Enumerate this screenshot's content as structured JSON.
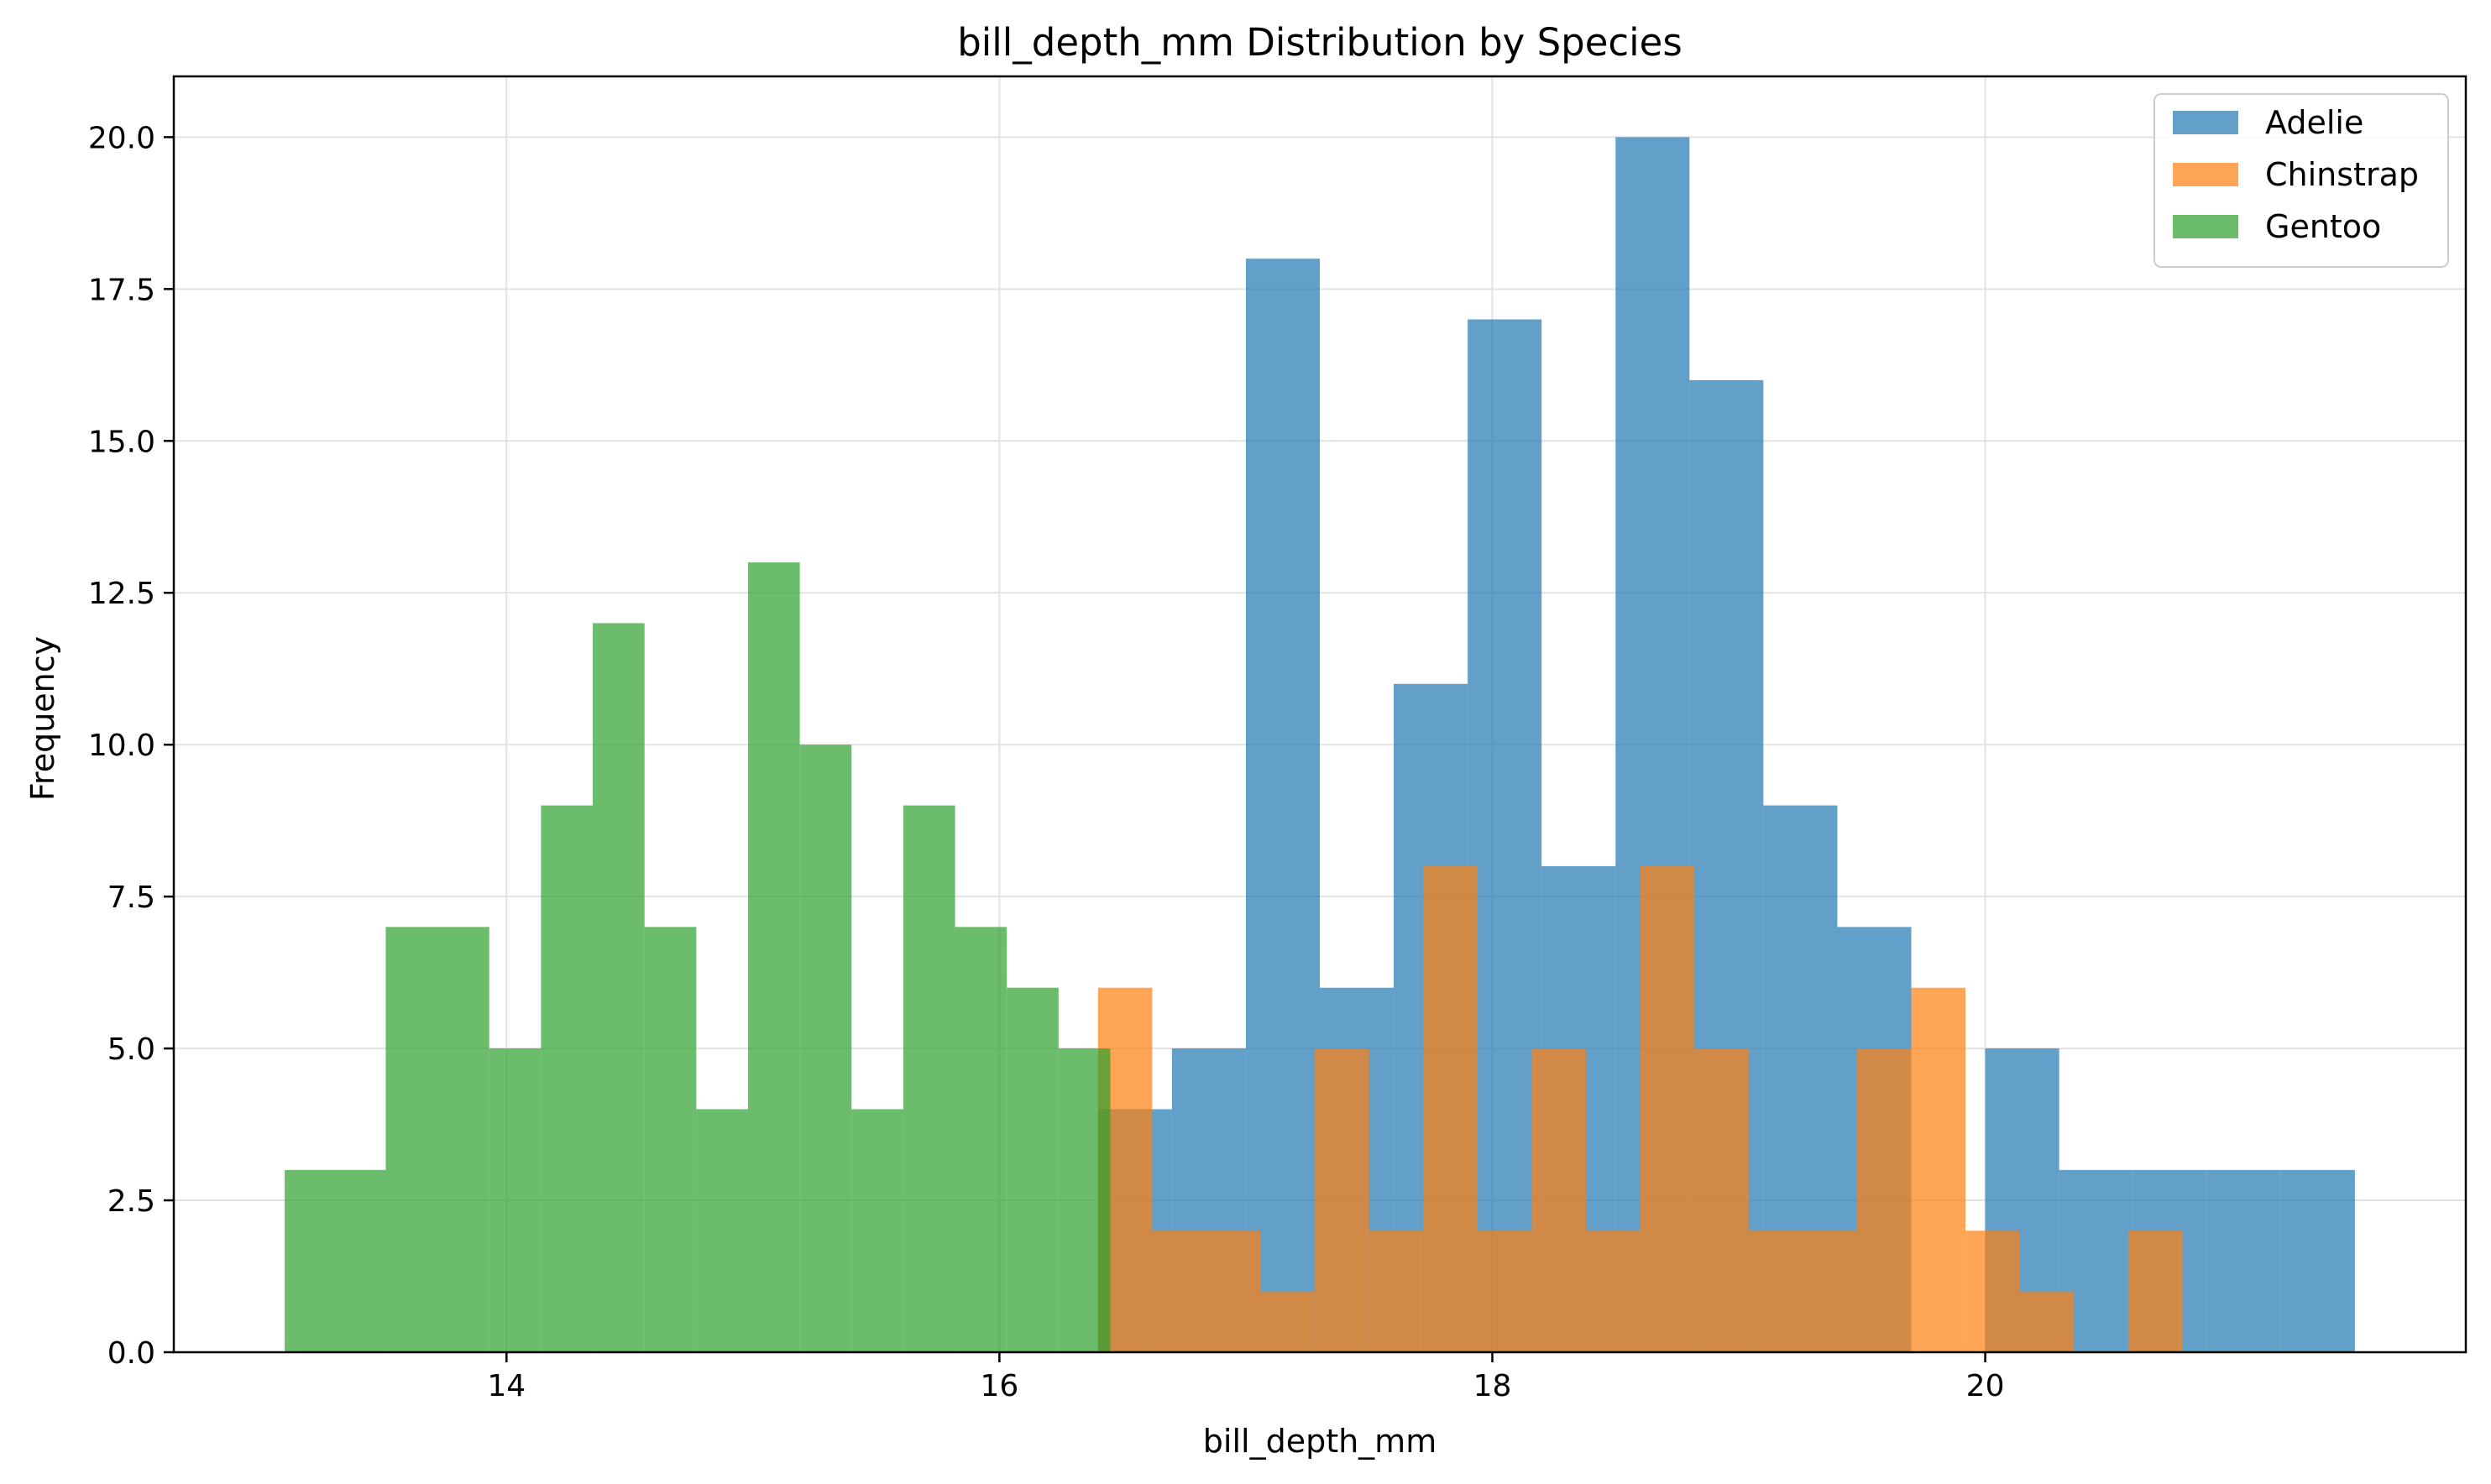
{
  "chart_data": {
    "type": "bar",
    "title": "bill_depth_mm Distribution by Species",
    "xlabel": "bill_depth_mm",
    "ylabel": "Frequency",
    "xlim": [
      12.65,
      21.95
    ],
    "ylim": [
      0,
      21.0
    ],
    "xticks": [
      14,
      16,
      18,
      20
    ],
    "xtick_labels": [
      "14",
      "16",
      "18",
      "20"
    ],
    "yticks": [
      0,
      2.5,
      5,
      7.5,
      10,
      12.5,
      15,
      17.5,
      20
    ],
    "ytick_labels": [
      "0.0",
      "2.5",
      "5.0",
      "7.5",
      "10.0",
      "12.5",
      "15.0",
      "17.5",
      "20.0"
    ],
    "grid": true,
    "legend_position": "top-right",
    "series": [
      {
        "name": "Adelie",
        "color": "#1f77b4",
        "bins": [
          {
            "x0": 16.4,
            "x1": 16.7,
            "value": 4
          },
          {
            "x0": 16.7,
            "x1": 17.0,
            "value": 5
          },
          {
            "x0": 17.0,
            "x1": 17.3,
            "value": 18
          },
          {
            "x0": 17.3,
            "x1": 17.6,
            "value": 6
          },
          {
            "x0": 17.6,
            "x1": 17.9,
            "value": 11
          },
          {
            "x0": 17.9,
            "x1": 18.2,
            "value": 17
          },
          {
            "x0": 18.2,
            "x1": 18.5,
            "value": 8
          },
          {
            "x0": 18.5,
            "x1": 18.8,
            "value": 20
          },
          {
            "x0": 18.8,
            "x1": 19.1,
            "value": 16
          },
          {
            "x0": 19.1,
            "x1": 19.4,
            "value": 9
          },
          {
            "x0": 19.4,
            "x1": 19.7,
            "value": 7
          },
          {
            "x0": 19.7,
            "x1": 20.0,
            "value": 0
          },
          {
            "x0": 20.0,
            "x1": 20.3,
            "value": 5
          },
          {
            "x0": 20.3,
            "x1": 20.6,
            "value": 3
          },
          {
            "x0": 20.6,
            "x1": 20.9,
            "value": 3
          },
          {
            "x0": 20.9,
            "x1": 21.2,
            "value": 3
          },
          {
            "x0": 21.2,
            "x1": 21.5,
            "value": 3
          }
        ]
      },
      {
        "name": "Chinstrap",
        "color": "#ff7f0e",
        "bins": [
          {
            "x0": 16.4,
            "x1": 16.62,
            "value": 6
          },
          {
            "x0": 16.62,
            "x1": 16.84,
            "value": 2
          },
          {
            "x0": 16.84,
            "x1": 17.06,
            "value": 2
          },
          {
            "x0": 17.06,
            "x1": 17.28,
            "value": 1
          },
          {
            "x0": 17.28,
            "x1": 17.5,
            "value": 5
          },
          {
            "x0": 17.5,
            "x1": 17.72,
            "value": 2
          },
          {
            "x0": 17.72,
            "x1": 17.94,
            "value": 8
          },
          {
            "x0": 17.94,
            "x1": 18.16,
            "value": 2
          },
          {
            "x0": 18.16,
            "x1": 18.38,
            "value": 5
          },
          {
            "x0": 18.38,
            "x1": 18.6,
            "value": 2
          },
          {
            "x0": 18.6,
            "x1": 18.82,
            "value": 8
          },
          {
            "x0": 18.82,
            "x1": 19.04,
            "value": 5
          },
          {
            "x0": 19.04,
            "x1": 19.26,
            "value": 2
          },
          {
            "x0": 19.26,
            "x1": 19.48,
            "value": 2
          },
          {
            "x0": 19.48,
            "x1": 19.7,
            "value": 5
          },
          {
            "x0": 19.7,
            "x1": 19.92,
            "value": 6
          },
          {
            "x0": 19.92,
            "x1": 20.14,
            "value": 2
          },
          {
            "x0": 20.14,
            "x1": 20.36,
            "value": 1
          },
          {
            "x0": 20.36,
            "x1": 20.58,
            "value": 0
          },
          {
            "x0": 20.58,
            "x1": 20.8,
            "value": 2
          }
        ]
      },
      {
        "name": "Gentoo",
        "color": "#2ca02c",
        "bins": [
          {
            "x0": 13.1,
            "x1": 13.51,
            "value": 3
          },
          {
            "x0": 13.51,
            "x1": 13.93,
            "value": 7
          },
          {
            "x0": 13.93,
            "x1": 14.14,
            "value": 5
          },
          {
            "x0": 14.14,
            "x1": 14.35,
            "value": 9
          },
          {
            "x0": 14.35,
            "x1": 14.56,
            "value": 12
          },
          {
            "x0": 14.56,
            "x1": 14.77,
            "value": 7
          },
          {
            "x0": 14.77,
            "x1": 14.98,
            "value": 4
          },
          {
            "x0": 14.98,
            "x1": 15.19,
            "value": 13
          },
          {
            "x0": 15.19,
            "x1": 15.4,
            "value": 10
          },
          {
            "x0": 15.4,
            "x1": 15.61,
            "value": 4
          },
          {
            "x0": 15.61,
            "x1": 15.82,
            "value": 9
          },
          {
            "x0": 15.82,
            "x1": 16.03,
            "value": 7
          },
          {
            "x0": 16.03,
            "x1": 16.24,
            "value": 6
          },
          {
            "x0": 16.24,
            "x1": 16.45,
            "value": 5
          },
          {
            "x0": 16.45,
            "x1": 16.66,
            "value": 0
          },
          {
            "x0": 16.66,
            "x1": 16.87,
            "value": 0
          },
          {
            "x0": 16.87,
            "x1": 17.08,
            "value": 0
          },
          {
            "x0": 17.08,
            "x1": 17.3,
            "value": 0
          }
        ]
      }
    ]
  }
}
